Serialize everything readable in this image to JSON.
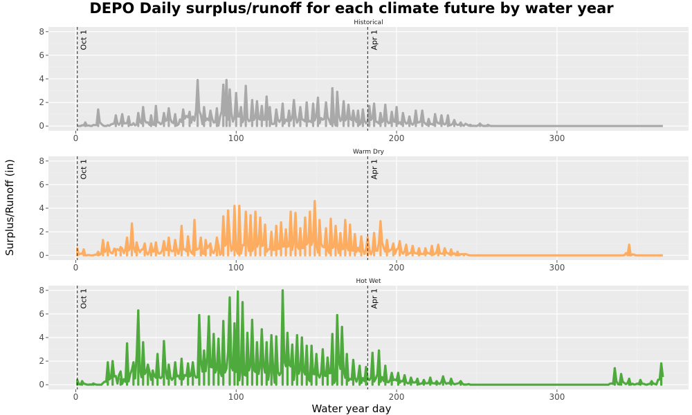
{
  "chart_data": {
    "type": "line",
    "title": "DEPO Daily surplus/runoff for each climate future by water year",
    "xlabel": "Water year day",
    "ylabel": "Surplus/Runoff (in)",
    "xlim": [
      -17,
      382
    ],
    "ylim": [
      -0.4,
      8.4
    ],
    "x_ticks": [
      0,
      100,
      200,
      300
    ],
    "y_ticks": [
      0,
      2,
      4,
      6,
      8
    ],
    "grid": true,
    "reference_lines": [
      {
        "x": 1,
        "label": "Oct 1"
      },
      {
        "x": 182,
        "label": "Apr 1"
      }
    ],
    "panels": [
      {
        "title": "Historical",
        "color": "#A9A9A9",
        "peaks": [
          [
            6,
            0.3
          ],
          [
            14,
            1.4
          ],
          [
            25,
            0.9
          ],
          [
            29,
            1.0
          ],
          [
            33,
            0.8
          ],
          [
            39,
            1.1
          ],
          [
            42,
            1.6
          ],
          [
            47,
            0.9
          ],
          [
            50,
            1.7
          ],
          [
            55,
            1.1
          ],
          [
            58,
            1.5
          ],
          [
            62,
            1.0
          ],
          [
            67,
            1.4
          ],
          [
            71,
            1.2
          ],
          [
            76,
            3.9
          ],
          [
            80,
            1.6
          ],
          [
            84,
            1.3
          ],
          [
            88,
            1.5
          ],
          [
            92,
            3.5
          ],
          [
            94,
            3.9
          ],
          [
            96,
            3.1
          ],
          [
            100,
            2.8
          ],
          [
            103,
            1.6
          ],
          [
            106,
            3.4
          ],
          [
            110,
            2.2
          ],
          [
            113,
            2.1
          ],
          [
            116,
            1.7
          ],
          [
            119,
            2.5
          ],
          [
            121,
            1.6
          ],
          [
            125,
            1.4
          ],
          [
            129,
            1.9
          ],
          [
            133,
            1.3
          ],
          [
            136,
            2.2
          ],
          [
            140,
            1.6
          ],
          [
            144,
            2.0
          ],
          [
            148,
            1.9
          ],
          [
            151,
            2.4
          ],
          [
            156,
            2.0
          ],
          [
            160,
            3.2
          ],
          [
            163,
            2.9
          ],
          [
            167,
            2.1
          ],
          [
            170,
            1.8
          ],
          [
            173,
            1.3
          ],
          [
            176,
            1.3
          ],
          [
            179,
            1.4
          ],
          [
            183,
            1.7
          ],
          [
            186,
            1.9
          ],
          [
            190,
            1.1
          ],
          [
            193,
            1.8
          ],
          [
            197,
            1.2
          ],
          [
            200,
            1.6
          ],
          [
            204,
            1.1
          ],
          [
            208,
            0.8
          ],
          [
            212,
            1.3
          ],
          [
            216,
            1.3
          ],
          [
            220,
            0.6
          ],
          [
            224,
            1.0
          ],
          [
            228,
            0.9
          ],
          [
            232,
            0.9
          ],
          [
            236,
            0.5
          ],
          [
            240,
            0.3
          ],
          [
            246,
            0.1
          ],
          [
            252,
            0.2
          ],
          [
            257,
            0.1
          ]
        ]
      },
      {
        "title": "Warm Dry",
        "color": "#FDAD61",
        "peaks": [
          [
            1,
            0.6
          ],
          [
            5,
            0.5
          ],
          [
            14,
            0.3
          ],
          [
            17,
            1.3
          ],
          [
            20,
            1.1
          ],
          [
            25,
            0.5
          ],
          [
            28,
            0.7
          ],
          [
            32,
            1.5
          ],
          [
            35,
            2.7
          ],
          [
            38,
            1.1
          ],
          [
            43,
            1.0
          ],
          [
            47,
            1.0
          ],
          [
            50,
            1.1
          ],
          [
            55,
            1.2
          ],
          [
            58,
            1.5
          ],
          [
            62,
            1.3
          ],
          [
            66,
            2.5
          ],
          [
            70,
            1.6
          ],
          [
            74,
            3.0
          ],
          [
            78,
            1.5
          ],
          [
            81,
            1.3
          ],
          [
            84,
            1.0
          ],
          [
            88,
            1.5
          ],
          [
            92,
            3.3
          ],
          [
            95,
            3.8
          ],
          [
            99,
            4.2
          ],
          [
            102,
            4.2
          ],
          [
            106,
            3.7
          ],
          [
            109,
            3.4
          ],
          [
            112,
            3.7
          ],
          [
            115,
            3.2
          ],
          [
            118,
            2.6
          ],
          [
            122,
            2.0
          ],
          [
            125,
            2.5
          ],
          [
            128,
            2.8
          ],
          [
            131,
            2.2
          ],
          [
            134,
            3.7
          ],
          [
            137,
            3.6
          ],
          [
            140,
            2.3
          ],
          [
            143,
            3.2
          ],
          [
            146,
            3.7
          ],
          [
            149,
            4.6
          ],
          [
            152,
            3.0
          ],
          [
            156,
            2.3
          ],
          [
            159,
            3.1
          ],
          [
            162,
            2.5
          ],
          [
            165,
            1.9
          ],
          [
            168,
            3.0
          ],
          [
            171,
            2.6
          ],
          [
            174,
            1.8
          ],
          [
            178,
            1.6
          ],
          [
            182,
            1.5
          ],
          [
            186,
            1.9
          ],
          [
            190,
            2.9
          ],
          [
            194,
            1.3
          ],
          [
            198,
            1.0
          ],
          [
            202,
            1.2
          ],
          [
            206,
            0.9
          ],
          [
            210,
            0.8
          ],
          [
            214,
            0.6
          ],
          [
            218,
            0.6
          ],
          [
            222,
            0.8
          ],
          [
            226,
            0.9
          ],
          [
            230,
            0.6
          ],
          [
            234,
            0.5
          ],
          [
            238,
            0.3
          ],
          [
            242,
            0.1
          ],
          [
            345,
            0.9
          ]
        ]
      },
      {
        "title": "Hot Wet",
        "color": "#4EAA3C",
        "peaks": [
          [
            1,
            0.4
          ],
          [
            4,
            0.3
          ],
          [
            11,
            0.1
          ],
          [
            20,
            1.9
          ],
          [
            23,
            2.0
          ],
          [
            28,
            0.5
          ],
          [
            32,
            3.5
          ],
          [
            36,
            1.9
          ],
          [
            39,
            6.3
          ],
          [
            42,
            3.6
          ],
          [
            45,
            1.7
          ],
          [
            48,
            1.2
          ],
          [
            51,
            2.6
          ],
          [
            55,
            3.7
          ],
          [
            58,
            1.7
          ],
          [
            62,
            1.9
          ],
          [
            66,
            2.2
          ],
          [
            70,
            1.8
          ],
          [
            73,
            1.9
          ],
          [
            77,
            5.9
          ],
          [
            80,
            2.9
          ],
          [
            83,
            5.8
          ],
          [
            86,
            4.3
          ],
          [
            89,
            3.9
          ],
          [
            92,
            5.4
          ],
          [
            96,
            7.4
          ],
          [
            99,
            5.2
          ],
          [
            101,
            7.9
          ],
          [
            104,
            7.0
          ],
          [
            107,
            4.4
          ],
          [
            110,
            5.5
          ],
          [
            113,
            3.6
          ],
          [
            116,
            4.7
          ],
          [
            119,
            3.6
          ],
          [
            122,
            4.2
          ],
          [
            125,
            4.1
          ],
          [
            129,
            8.0
          ],
          [
            132,
            4.4
          ],
          [
            135,
            3.4
          ],
          [
            138,
            4.2
          ],
          [
            141,
            4.0
          ],
          [
            144,
            3.3
          ],
          [
            147,
            3.3
          ],
          [
            150,
            2.6
          ],
          [
            154,
            3.0
          ],
          [
            157,
            2.3
          ],
          [
            160,
            4.3
          ],
          [
            163,
            5.9
          ],
          [
            166,
            4.9
          ],
          [
            169,
            2.6
          ],
          [
            173,
            2.1
          ],
          [
            177,
            1.6
          ],
          [
            181,
            1.5
          ],
          [
            185,
            2.7
          ],
          [
            189,
            2.9
          ],
          [
            193,
            1.6
          ],
          [
            197,
            1.0
          ],
          [
            201,
            1.0
          ],
          [
            205,
            0.8
          ],
          [
            209,
            0.6
          ],
          [
            213,
            0.5
          ],
          [
            217,
            0.4
          ],
          [
            221,
            0.6
          ],
          [
            225,
            0.3
          ],
          [
            229,
            0.7
          ],
          [
            234,
            0.5
          ],
          [
            240,
            0.3
          ],
          [
            336,
            1.4
          ],
          [
            340,
            0.9
          ],
          [
            345,
            0.5
          ],
          [
            352,
            0.4
          ],
          [
            359,
            0.3
          ],
          [
            365,
            1.8
          ]
        ]
      }
    ]
  }
}
